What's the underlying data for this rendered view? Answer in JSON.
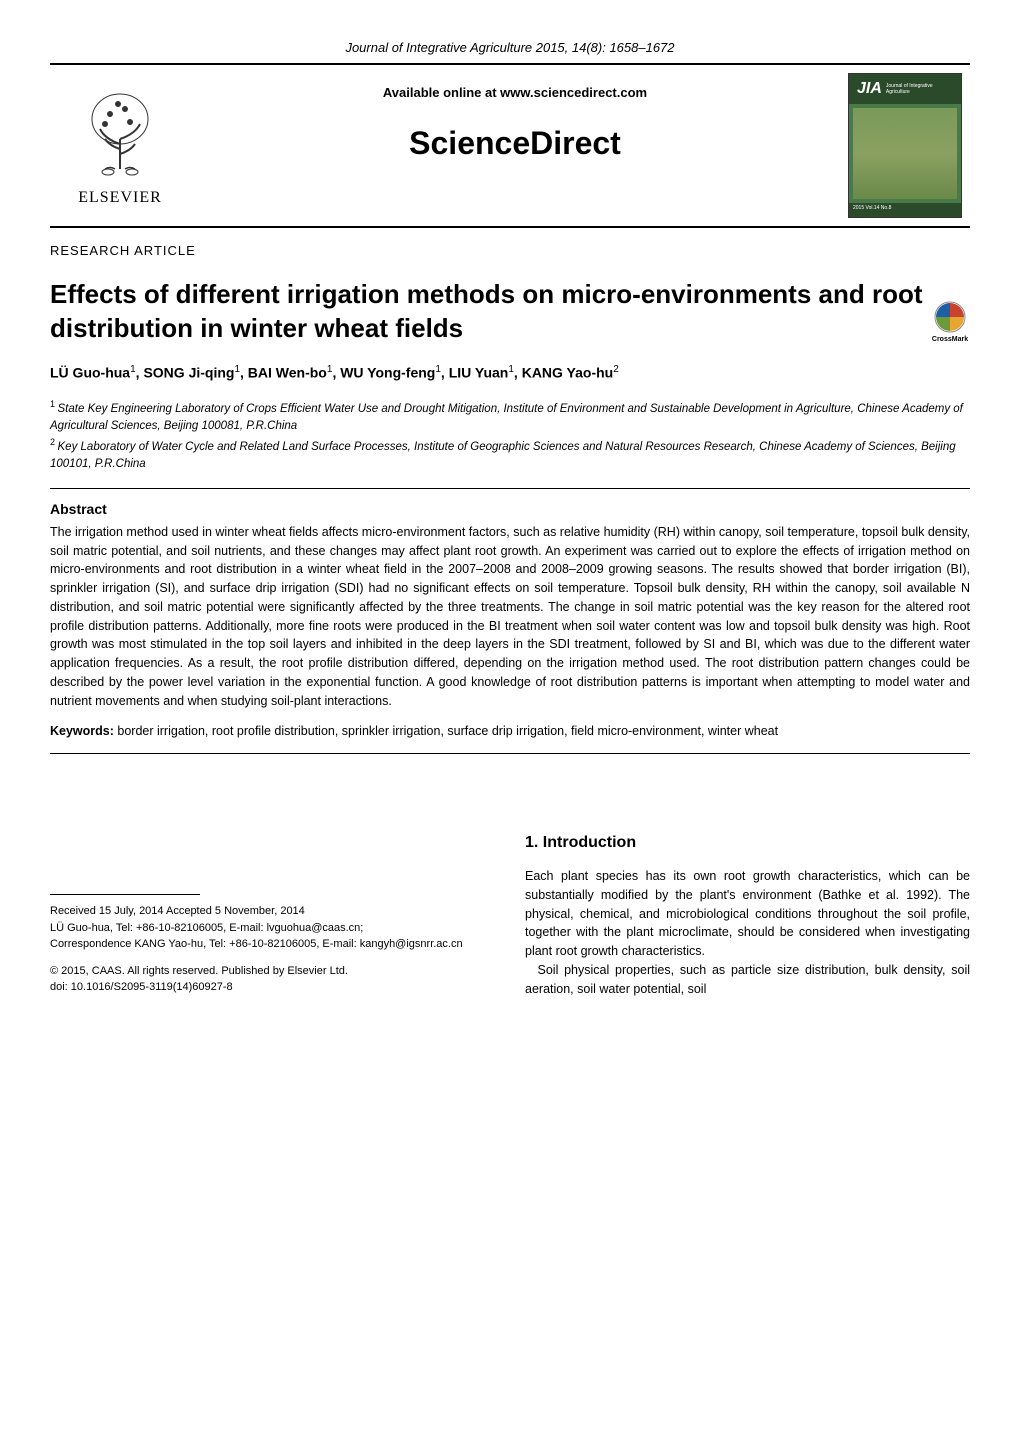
{
  "journal_header": "Journal of Integrative Agriculture  2015, 14(8): 1658–1672",
  "banner": {
    "available_text": "Available online at www.sciencedirect.com",
    "sciencedirect": "ScienceDirect",
    "elsevier": "ELSEVIER",
    "jia_logo": "JIA",
    "jia_subtitle": "Journal of Integrative Agriculture",
    "jia_footer": "2015  Vol.14  No.8"
  },
  "article_type": "RESEARCH  ARTICLE",
  "title": "Effects of different irrigation methods on micro-environments and root distribution in winter wheat fields",
  "crossmark_label": "CrossMark",
  "authors": "LÜ Guo-hua",
  "authors_full": [
    {
      "name": "LÜ Guo-hua",
      "sup": "1"
    },
    {
      "name": "SONG Ji-qing",
      "sup": "1"
    },
    {
      "name": "BAI Wen-bo",
      "sup": "1"
    },
    {
      "name": "WU Yong-feng",
      "sup": "1"
    },
    {
      "name": "LIU Yuan",
      "sup": "1"
    },
    {
      "name": "KANG Yao-hu",
      "sup": "2"
    }
  ],
  "affiliations": [
    {
      "sup": "1",
      "text": "State Key Engineering Laboratory of Crops Efficient Water Use and Drought Mitigation, Institute of Environment and Sustainable Development in Agriculture, Chinese Academy of Agricultural Sciences, Beijing 100081, P.R.China"
    },
    {
      "sup": "2",
      "text": "Key Laboratory of Water Cycle and Related Land Surface Processes, Institute of Geographic Sciences and Natural Resources Research, Chinese Academy of Sciences, Beijing 100101, P.R.China"
    }
  ],
  "abstract_heading": "Abstract",
  "abstract_text": "The irrigation method used in winter wheat fields affects micro-environment factors, such as relative humidity (RH) within canopy, soil temperature, topsoil bulk density, soil matric potential, and soil nutrients, and these changes may affect plant root growth.  An experiment was carried out to explore the effects of irrigation method on micro-environments and root distribution in a winter wheat field in the 2007–2008 and 2008–2009 growing seasons.  The results showed that border irrigation (BI), sprinkler irrigation (SI), and surface drip irrigation (SDI) had no significant effects on soil temperature.  Topsoil bulk density, RH within the canopy, soil available N distribution, and soil matric potential were significantly affected by the three treatments.  The change in soil matric potential was the key reason for the altered root profile distribution patterns.  Additionally, more fine roots were produced in the BI treatment when soil water content was low and topsoil bulk density was high.  Root growth was most stimulated in the top soil layers and inhibited in the deep layers in the SDI treatment, followed by SI and BI, which was due to the different water application frequencies.  As a result, the root profile distribution differed, depending on the irrigation method used.  The root distribution pattern changes could be described by the power level variation in the exponential function.  A good knowledge of root distribution patterns is important when attempting to model water and nutrient movements and when studying soil-plant interactions.",
  "keywords_label": "Keywords",
  "keywords_text": "border irrigation, root profile distribution, sprinkler irrigation, surface drip irrigation, field micro-environment, winter wheat",
  "footnote": {
    "received": "Received 15 July, 2014    Accepted 5 November, 2014",
    "author1": "LÜ Guo-hua, Tel: +86-10-82106005, E-mail: lvguohua@caas.cn;",
    "correspondence": "Correspondence KANG Yao-hu, Tel: +86-10-82106005, E-mail: kangyh@igsnrr.ac.cn",
    "copyright": "© 2015, CAAS. All rights reserved. Published by Elsevier Ltd.",
    "doi": "doi: 10.1016/S2095-3119(14)60927-8"
  },
  "intro_heading": "1. Introduction",
  "intro_p1": "Each plant species has its own root growth characteristics, which can be substantially modified by the plant's environment (Bathke et al. 1992).  The physical, chemical, and microbiological conditions throughout the soil profile, together with the plant microclimate, should be considered when investigating plant root growth characteristics.",
  "intro_p2": "Soil physical properties, such as particle size distribution, bulk density, soil aeration, soil water potential, soil",
  "colors": {
    "text": "#000000",
    "background": "#ffffff",
    "jia_green": "#4a7a4a",
    "jia_dark_green": "#2a4a2a",
    "crossmark_blue": "#1e5fa8",
    "crossmark_red": "#c8442f",
    "crossmark_yellow": "#e8a532",
    "crossmark_green": "#6a9a3a"
  }
}
